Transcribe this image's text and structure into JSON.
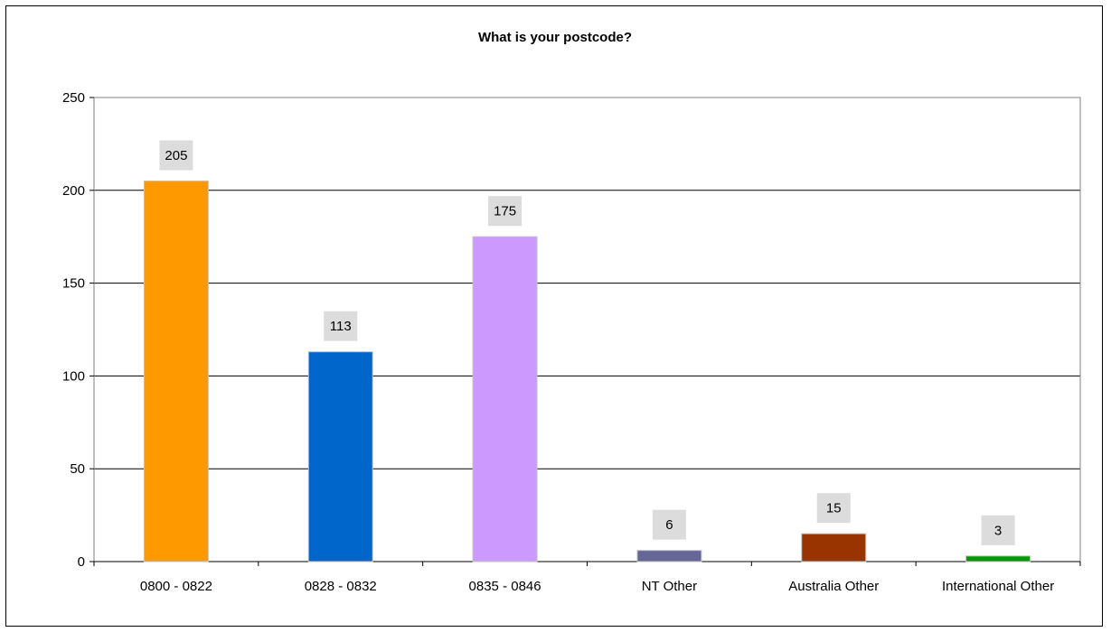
{
  "chart_data": {
    "type": "bar",
    "title": "What is your postcode?",
    "xlabel": "",
    "ylabel": "",
    "categories": [
      "0800 - 0822",
      "0828 - 0832",
      "0835 - 0846",
      "NT Other",
      "Australia Other",
      "International Other"
    ],
    "values": [
      205,
      113,
      175,
      6,
      15,
      3
    ],
    "data_labels": [
      "205",
      "113",
      "175",
      "6",
      "15",
      "3"
    ],
    "ylim": [
      0,
      250
    ],
    "yticks": [
      0,
      50,
      100,
      150,
      200,
      250
    ],
    "ytick_labels": [
      "0",
      "50",
      "100",
      "150",
      "200",
      "250"
    ],
    "grid": true,
    "legend": "none",
    "bar_colors": [
      "#FF9900",
      "#0066CC",
      "#CC99FF",
      "#666699",
      "#993300",
      "#009900"
    ]
  }
}
